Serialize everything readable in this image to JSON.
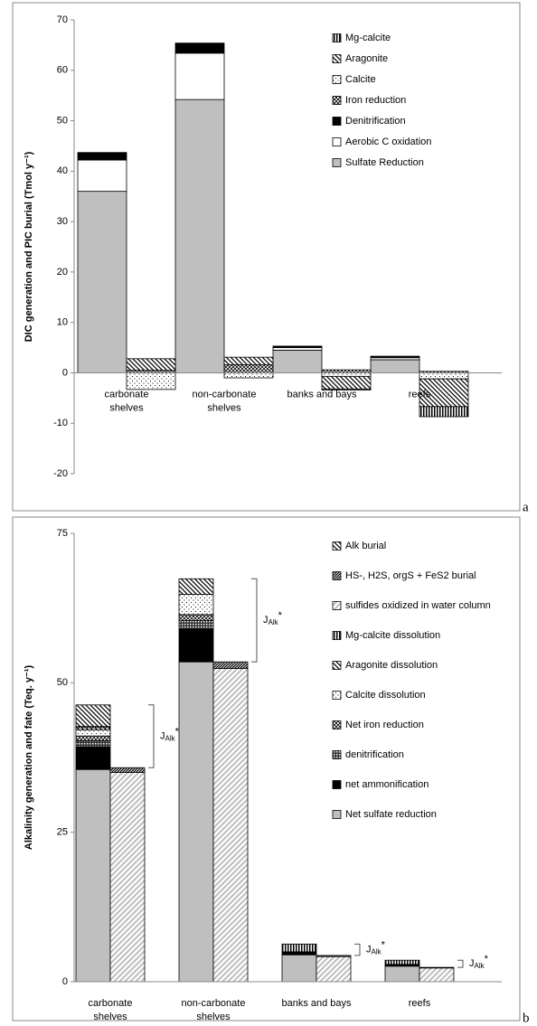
{
  "chart_data": [
    {
      "type": "bar",
      "panel_label": "a",
      "ylabel": "DIC generation and PIC burial (Tmol y⁻¹)",
      "categories": [
        [
          "carbonate",
          "shelves"
        ],
        [
          "non-carbonate",
          "shelves"
        ],
        [
          "banks and bays"
        ],
        [
          "reefs"
        ]
      ],
      "ylim": [
        -20,
        70
      ],
      "yticks": [
        -20,
        -10,
        0,
        10,
        20,
        30,
        40,
        50,
        60,
        70
      ],
      "series": [
        {
          "name": "Mg-calcite",
          "pattern": "vlines",
          "stack": 1,
          "values": [
            0,
            0,
            -0.2,
            -2
          ]
        },
        {
          "name": "Aragonite",
          "pattern": "diag",
          "stack": 1,
          "values": [
            2.3,
            1.5,
            -2.5,
            -5.5
          ]
        },
        {
          "name": "Calcite",
          "pattern": "dots",
          "stack": 1,
          "values": [
            -3.3,
            -1,
            -0.7,
            -1.2
          ]
        },
        {
          "name": "Iron reduction",
          "pattern": "dense",
          "stack": 1,
          "values": [
            0.5,
            1.6,
            0.6,
            0.3
          ]
        },
        {
          "name": "Denitrification",
          "pattern": "black",
          "stack": 0,
          "values": [
            1.5,
            2,
            0.3,
            0.3
          ]
        },
        {
          "name": "Aerobic C oxidation",
          "pattern": "white",
          "stack": 0,
          "values": [
            6.2,
            9.2,
            0.5,
            0.4
          ]
        },
        {
          "name": "Sulfate Reduction",
          "pattern": "grey",
          "stack": 0,
          "values": [
            36,
            54.2,
            4.5,
            2.6
          ]
        }
      ]
    },
    {
      "type": "bar",
      "panel_label": "b",
      "ylabel": "Alkalinity generation and fate (Teq. y⁻¹)",
      "categories": [
        [
          "carbonate",
          "shelves"
        ],
        [
          "non-carbonate",
          "shelves"
        ],
        [
          "banks and bays"
        ],
        [
          "reefs"
        ]
      ],
      "ylim": [
        0,
        75
      ],
      "yticks": [
        0,
        25,
        50,
        75
      ],
      "series": [
        {
          "name": "Alk burial",
          "pattern": "diag",
          "stack": 0,
          "values": [
            3.6,
            2.6,
            0,
            0
          ]
        },
        {
          "name": "HS-, H2S, orgS + FeS2 burial",
          "pattern": "darkdiag",
          "stack": 1,
          "values": [
            0.8,
            1.1,
            0.2,
            0.1
          ]
        },
        {
          "name": "sulfides oxidized in water column",
          "pattern": "lightdiag",
          "stack": 1,
          "values": [
            35,
            52.4,
            4.2,
            2.3
          ]
        },
        {
          "name": "Mg-calcite dissolution",
          "pattern": "vlines",
          "stack": 0,
          "values": [
            0.2,
            0,
            1.3,
            0.7
          ]
        },
        {
          "name": "Aragonite dissolution",
          "pattern": "diag",
          "stack": 0,
          "values": [
            0.4,
            0,
            0,
            0
          ]
        },
        {
          "name": "Calcite dissolution",
          "pattern": "dots",
          "stack": 0,
          "values": [
            1,
            3.4,
            0,
            0
          ]
        },
        {
          "name": "Net iron reduction",
          "pattern": "dense",
          "stack": 0,
          "values": [
            0.8,
            1,
            0,
            0
          ]
        },
        {
          "name": "denitrification",
          "pattern": "checker",
          "stack": 0,
          "values": [
            1,
            1.4,
            0,
            0
          ]
        },
        {
          "name": "net ammonification",
          "pattern": "black",
          "stack": 0,
          "values": [
            3.8,
            5.5,
            0.5,
            0.3
          ]
        },
        {
          "name": "Net sulfate reduction",
          "pattern": "grey",
          "stack": 0,
          "values": [
            35.5,
            53.5,
            4.5,
            2.6
          ]
        }
      ],
      "annotations": [
        {
          "text": "J",
          "sub": "Alk",
          "sup": "*"
        },
        {
          "text": "J",
          "sub": "Alk",
          "sup": "*"
        },
        {
          "text": "J",
          "sub": "Alk",
          "sup": "*"
        },
        {
          "text": "J",
          "sub": "Alk",
          "sup": "*"
        }
      ]
    }
  ]
}
